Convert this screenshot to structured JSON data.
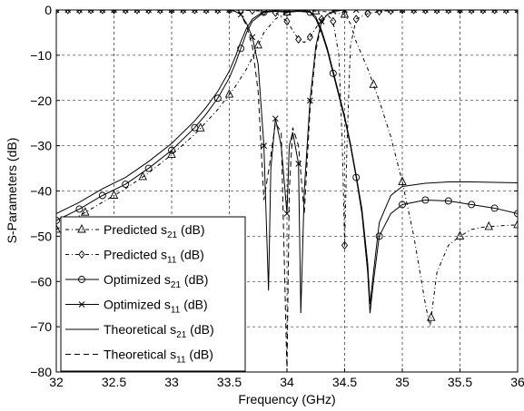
{
  "chart_data": {
    "type": "line",
    "title": "",
    "xlabel": "Frequency (GHz)",
    "ylabel": "S-Parameters (dB)",
    "xlim": [
      32,
      36
    ],
    "ylim": [
      -80,
      0
    ],
    "x_ticks": [
      "32",
      "32.5",
      "33",
      "33.5",
      "34",
      "34.5",
      "35",
      "35.5",
      "36"
    ],
    "y_ticks": [
      "0",
      "−10",
      "−20",
      "−30",
      "−40",
      "−50",
      "−60",
      "−70",
      "−80"
    ],
    "grid": true,
    "legend_position": "bottom-left",
    "series": [
      {
        "name": "Predicted s21 (dB)",
        "label_main": "Predicted s",
        "label_sub": "21",
        "label_unit": " (dB)",
        "style": "dashdot",
        "marker": "triangle",
        "marker_every": 0.25,
        "marker_offset": 32.0,
        "x": [
          32.0,
          32.2,
          32.4,
          32.6,
          32.8,
          33.0,
          33.2,
          33.4,
          33.55,
          33.65,
          33.72,
          33.8,
          33.9,
          34.0,
          34.1,
          34.2,
          34.3,
          34.4,
          34.5,
          34.55,
          34.6,
          34.7,
          34.8,
          34.9,
          35.0,
          35.1,
          35.2,
          35.24,
          35.3,
          35.4,
          35.5,
          35.6,
          35.7,
          35.8,
          35.9,
          36.0
        ],
        "y": [
          -48.5,
          -45.5,
          -42.5,
          -39.5,
          -36.0,
          -32.0,
          -27.5,
          -22.0,
          -17.0,
          -13.0,
          -9.5,
          -5.0,
          -2.0,
          -0.5,
          -0.2,
          -0.2,
          -0.3,
          -0.5,
          -1.0,
          -3.0,
          -7.0,
          -13.0,
          -20.0,
          -28.0,
          -38.0,
          -50.0,
          -65.0,
          -70.0,
          -58.0,
          -52.0,
          -50.0,
          -48.5,
          -48.0,
          -47.8,
          -47.6,
          -47.5
        ]
      },
      {
        "name": "Predicted s11 (dB)",
        "label_main": "Predicted s",
        "label_sub": "11",
        "label_unit": " (dB)",
        "style": "dashdot",
        "marker": "diamond",
        "marker_every": 0.1,
        "marker_offset": 32.0,
        "x": [
          32.0,
          32.5,
          33.0,
          33.5,
          33.6,
          33.7,
          33.8,
          33.9,
          33.95,
          34.0,
          34.05,
          34.1,
          34.15,
          34.2,
          34.25,
          34.3,
          34.35,
          34.4,
          34.45,
          34.48,
          34.5,
          34.52,
          34.55,
          34.6,
          34.7,
          34.8,
          35.0,
          36.0
        ],
        "y": [
          0,
          0,
          0,
          0,
          -0.05,
          -0.1,
          -0.3,
          -0.6,
          -1.5,
          -2.5,
          -4.5,
          -6.5,
          -7.2,
          -6.0,
          -4.0,
          -2.0,
          -1.0,
          -2.5,
          -10.0,
          -30.0,
          -52.0,
          -30.0,
          -8.0,
          -2.0,
          -0.8,
          -0.3,
          0,
          0
        ]
      },
      {
        "name": "Optimized s21 (dB)",
        "label_main": "Optimized s",
        "label_sub": "21",
        "label_unit": " (dB)",
        "style": "solid",
        "marker": "circle",
        "marker_every": 0.2,
        "marker_offset": 32.0,
        "x": [
          32.0,
          32.2,
          32.4,
          32.6,
          32.8,
          33.0,
          33.2,
          33.3,
          33.4,
          33.5,
          33.55,
          33.6,
          33.65,
          33.7,
          33.8,
          33.9,
          34.0,
          34.1,
          34.2,
          34.25,
          34.3,
          34.35,
          34.4,
          34.45,
          34.5,
          34.55,
          34.6,
          34.65,
          34.7,
          34.72,
          34.75,
          34.8,
          34.9,
          35.0,
          35.2,
          35.4,
          35.6,
          35.8,
          36.0
        ],
        "y": [
          -46.5,
          -44.0,
          -41.0,
          -38.5,
          -35.0,
          -31.0,
          -26.0,
          -23.0,
          -19.5,
          -15.0,
          -12.0,
          -8.5,
          -5.0,
          -2.5,
          -0.5,
          -0.3,
          -0.5,
          -0.3,
          -0.5,
          -2.0,
          -5.0,
          -9.0,
          -14.0,
          -19.0,
          -24.0,
          -30.0,
          -37.0,
          -45.0,
          -58.0,
          -67.0,
          -60.0,
          -50.0,
          -45.0,
          -43.0,
          -42.0,
          -42.2,
          -43.0,
          -43.8,
          -45.0
        ]
      },
      {
        "name": "Optimized s11 (dB)",
        "label_main": "Optimized s",
        "label_sub": "11",
        "label_unit": " (dB)",
        "style": "solid",
        "marker": "cross",
        "marker_every": 0.1,
        "marker_offset": 32.0,
        "x": [
          32.0,
          33.0,
          33.5,
          33.55,
          33.6,
          33.65,
          33.7,
          33.75,
          33.8,
          33.84,
          33.86,
          33.9,
          33.95,
          34.0,
          34.02,
          34.05,
          34.1,
          34.12,
          34.15,
          34.2,
          34.25,
          34.3,
          34.35,
          34.4,
          34.5,
          35.0,
          36.0
        ],
        "y": [
          0,
          0,
          0,
          -0.3,
          -1.0,
          -3.0,
          -6.0,
          -12.0,
          -30.0,
          -62.0,
          -35.0,
          -24.0,
          -30.0,
          -45.0,
          -30.0,
          -27.0,
          -34.0,
          -67.0,
          -40.0,
          -20.0,
          -8.0,
          -2.5,
          -1.0,
          -0.3,
          0,
          0,
          0
        ]
      },
      {
        "name": "Theoretical s21 (dB)",
        "label_main": "Theoretical s",
        "label_sub": "21",
        "label_unit": " (dB)",
        "style": "solid",
        "marker": "none",
        "x": [
          32.0,
          32.2,
          32.4,
          32.6,
          32.8,
          33.0,
          33.2,
          33.3,
          33.4,
          33.5,
          33.55,
          33.6,
          33.65,
          33.7,
          33.8,
          33.9,
          34.0,
          34.1,
          34.2,
          34.25,
          34.3,
          34.35,
          34.4,
          34.45,
          34.5,
          34.55,
          34.6,
          34.65,
          34.7,
          34.72,
          34.75,
          34.8,
          34.9,
          35.0,
          35.2,
          35.4,
          35.6,
          35.8,
          36.0
        ],
        "y": [
          -45.0,
          -42.5,
          -39.5,
          -37.0,
          -33.5,
          -29.5,
          -24.5,
          -21.5,
          -18.0,
          -13.5,
          -10.5,
          -7.0,
          -4.0,
          -2.0,
          -0.3,
          -0.2,
          -0.3,
          -0.2,
          -0.3,
          -1.5,
          -4.5,
          -8.5,
          -13.5,
          -18.5,
          -23.5,
          -29.5,
          -36.5,
          -44.0,
          -56.0,
          -65.0,
          -58.0,
          -47.0,
          -41.0,
          -39.0,
          -38.3,
          -38.0,
          -38.0,
          -38.1,
          -38.2
        ]
      },
      {
        "name": "Theoretical s11 (dB)",
        "label_main": "Theoretical s",
        "label_sub": "11",
        "label_unit": " (dB)",
        "style": "dashed",
        "marker": "none",
        "x": [
          32.0,
          33.0,
          33.5,
          33.55,
          33.6,
          33.65,
          33.7,
          33.75,
          33.8,
          33.85,
          33.9,
          33.95,
          34.0,
          34.02,
          34.05,
          34.1,
          34.15,
          34.2,
          34.25,
          34.3,
          34.35,
          34.4,
          34.5,
          35.0,
          36.0
        ],
        "y": [
          0,
          0,
          0,
          -0.3,
          -1.0,
          -3.5,
          -8.0,
          -18.0,
          -42.0,
          -34.0,
          -25.0,
          -27.0,
          -80.0,
          -40.0,
          -26.0,
          -30.0,
          -45.0,
          -22.0,
          -9.0,
          -3.0,
          -1.0,
          -0.3,
          0,
          0,
          0
        ]
      }
    ]
  }
}
